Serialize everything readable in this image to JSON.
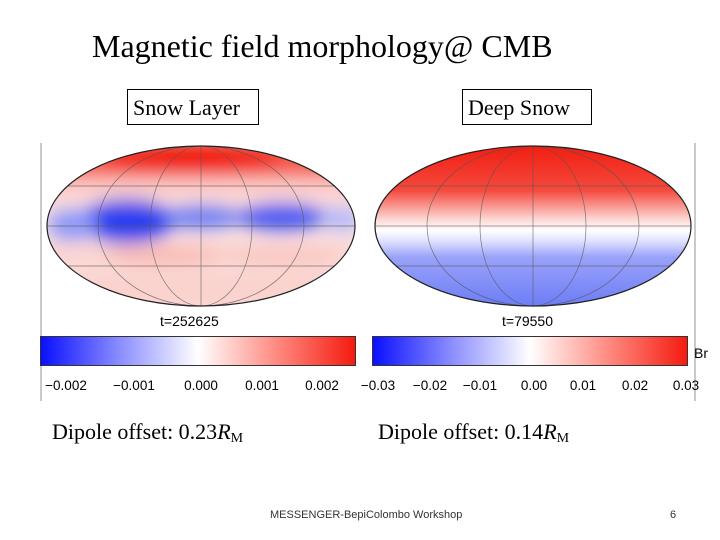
{
  "slide": {
    "title": "Magnetic field morphology@ CMB",
    "left": {
      "label": "Snow Layer",
      "time": "t=252625",
      "ticks": [
        "−0.002",
        "−0.001",
        "0.000",
        "0.001",
        "0.002"
      ],
      "offset_prefix": "Dipole offset: 0.23",
      "offset_var": "R",
      "offset_sub": "M"
    },
    "right": {
      "label": "Deep Snow",
      "time": "t=79550",
      "ticks": [
        "−0.03",
        "−0.02",
        "−0.01",
        "0.00",
        "0.01",
        "0.02",
        "0.03"
      ],
      "offset_prefix": "Dipole offset: 0.14",
      "offset_var": "R",
      "offset_sub": "M"
    },
    "colorbar_label": "Br",
    "colors": {
      "positive": "#f41b10",
      "negative": "#0a10ff",
      "zero": "#ffffff"
    },
    "footer": "MESSENGER-BepiColombo Workshop",
    "page_number": "6"
  }
}
